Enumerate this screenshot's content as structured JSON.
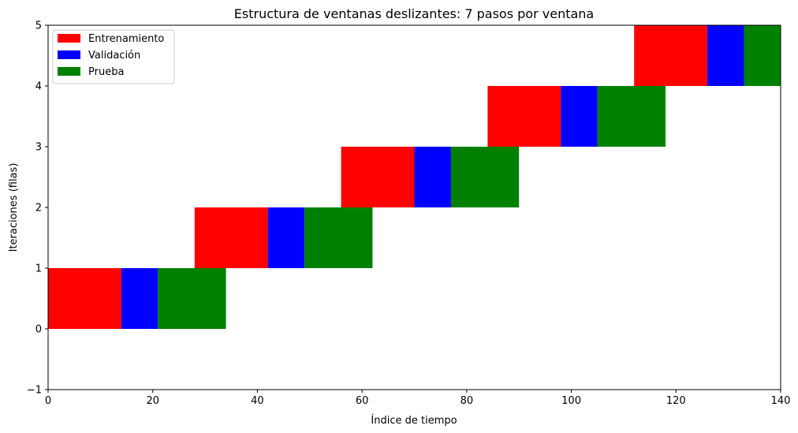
{
  "chart_data": {
    "type": "bar",
    "title": "Estructura de ventanas deslizantes: 7 pasos por ventana",
    "xlabel": "Índice de tiempo",
    "ylabel": "Iteraciones (filas)",
    "xlim": [
      0,
      140
    ],
    "ylim": [
      -1,
      5
    ],
    "xticks": [
      0,
      20,
      40,
      60,
      80,
      100,
      120,
      140
    ],
    "yticks": [
      -1,
      0,
      1,
      2,
      3,
      4,
      5
    ],
    "xtick_labels": [
      "0",
      "20",
      "40",
      "60",
      "80",
      "100",
      "120",
      "140"
    ],
    "ytick_labels": [
      "−1",
      "0",
      "1",
      "2",
      "3",
      "4",
      "5"
    ],
    "grid": false,
    "legend_position": "top-left",
    "series": [
      {
        "name": "Entrenamiento",
        "color": "#ff0000",
        "segments": [
          {
            "row": 0,
            "start": 0,
            "end": 14
          },
          {
            "row": 1,
            "start": 28,
            "end": 42
          },
          {
            "row": 2,
            "start": 56,
            "end": 70
          },
          {
            "row": 3,
            "start": 84,
            "end": 98
          },
          {
            "row": 4,
            "start": 112,
            "end": 126
          }
        ]
      },
      {
        "name": "Validación",
        "color": "#0000ff",
        "segments": [
          {
            "row": 0,
            "start": 14,
            "end": 21
          },
          {
            "row": 1,
            "start": 42,
            "end": 49
          },
          {
            "row": 2,
            "start": 70,
            "end": 77
          },
          {
            "row": 3,
            "start": 98,
            "end": 105
          },
          {
            "row": 4,
            "start": 126,
            "end": 133
          }
        ]
      },
      {
        "name": "Prueba",
        "color": "#008000",
        "segments": [
          {
            "row": 0,
            "start": 21,
            "end": 34
          },
          {
            "row": 1,
            "start": 49,
            "end": 62
          },
          {
            "row": 2,
            "start": 77,
            "end": 90
          },
          {
            "row": 3,
            "start": 105,
            "end": 118
          },
          {
            "row": 4,
            "start": 133,
            "end": 146
          }
        ]
      }
    ]
  }
}
